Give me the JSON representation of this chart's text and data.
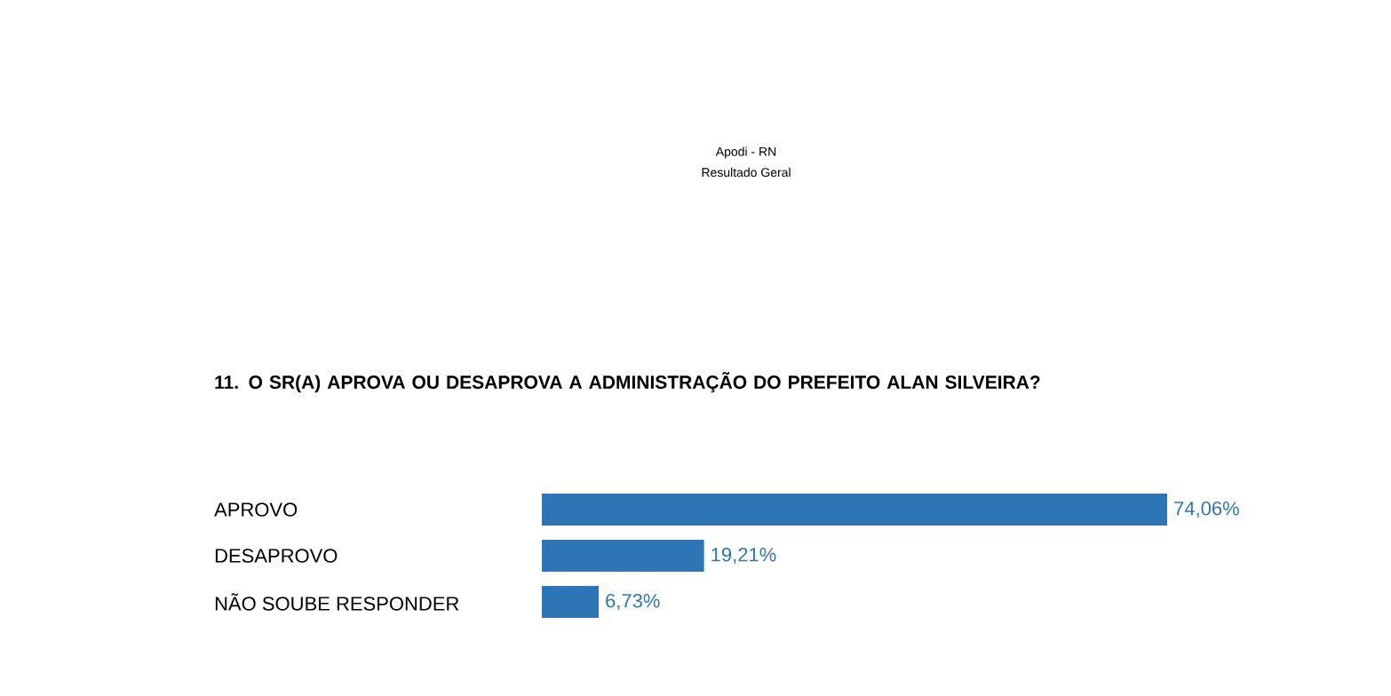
{
  "chart_data": {
    "type": "bar",
    "orientation": "horizontal",
    "title": "11. O SR(A) APROVA OU DESAPROVA A ADMINISTRAÇÃO DO PREFEITO ALAN SILVEIRA?",
    "annotations": [
      "Apodi - RN",
      "Resultado Geral"
    ],
    "categories": [
      "APROVO",
      "DESAPROVO",
      "NÃO SOUBE RESPONDER"
    ],
    "values": [
      74.06,
      19.21,
      6.73
    ],
    "value_labels": [
      "74,06%",
      "19,21%",
      "6,73%"
    ],
    "color": "#2e75b6"
  }
}
